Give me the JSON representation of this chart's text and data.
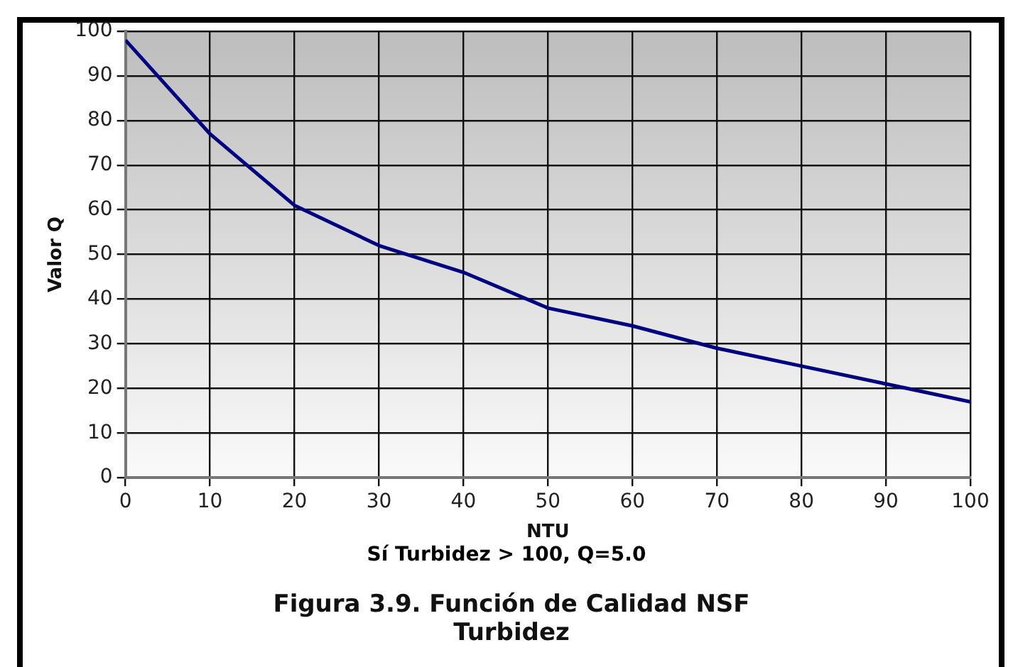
{
  "chart_data": {
    "type": "line",
    "title": "Figura 3.9. Función de Calidad NSF Turbidez",
    "xlabel": "NTU",
    "ylabel": "Valor Q",
    "annotations": [
      "Sí Turbidez > 100, Q=5.0"
    ],
    "x": [
      0,
      10,
      20,
      30,
      40,
      50,
      60,
      70,
      80,
      90,
      100
    ],
    "series": [
      {
        "color": "#000080",
        "values": [
          98,
          77,
          61,
          52,
          46,
          38,
          34,
          29,
          25,
          21,
          17
        ]
      }
    ],
    "xlim": [
      0,
      100
    ],
    "xticks": [
      0,
      10,
      20,
      30,
      40,
      50,
      60,
      70,
      80,
      90,
      100
    ],
    "ylim": [
      0,
      100
    ],
    "yticks": [
      0,
      10,
      20,
      30,
      40,
      50,
      60,
      70,
      80,
      90,
      100
    ],
    "grid": true,
    "legend": false,
    "marker": "none",
    "line_style": "solid"
  }
}
